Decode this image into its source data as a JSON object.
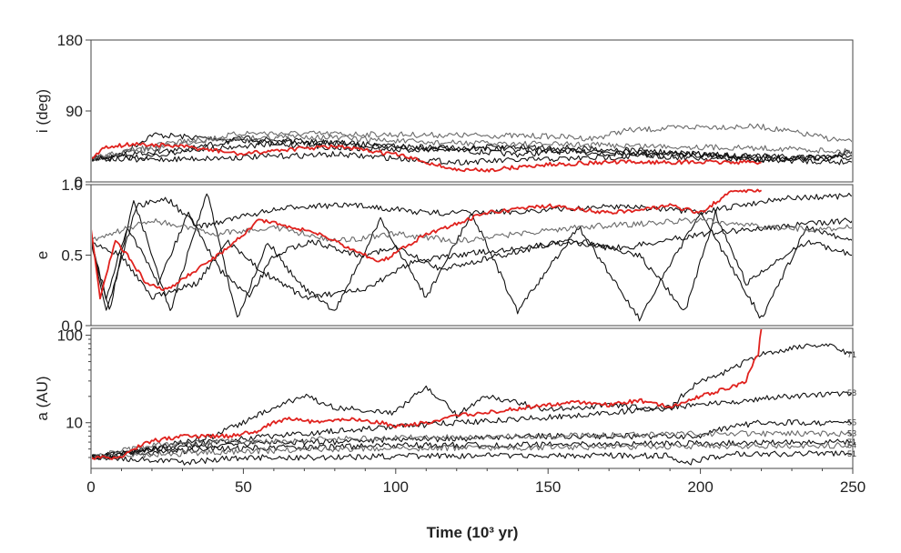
{
  "colors": {
    "background": "#ffffff",
    "axis": "#444444",
    "black_series": "#111111",
    "gray_series": "#6a6a6a",
    "highlight": "#e0221e"
  },
  "chart_data": {
    "type": "line",
    "layout": "three stacked panels sharing the time axis",
    "xlabel": "Time (10³ yr)",
    "xlim": [
      0,
      250
    ],
    "xticks": [
      "0",
      "50",
      "100",
      "150",
      "200",
      "250"
    ],
    "grid": false,
    "legend": "none",
    "panels": [
      {
        "id": "inclination",
        "ylabel": "i (deg)",
        "ylim": [
          0,
          180
        ],
        "scale": "linear",
        "yticks": [
          "0",
          "90",
          "180"
        ],
        "series": [
          {
            "color": "red",
            "x": [
              0,
              5,
              15,
              30,
              40,
              50,
              60,
              80,
              100,
              110,
              120,
              130,
              150,
              170,
              200,
              210,
              220
            ],
            "y": [
              30,
              45,
              48,
              45,
              40,
              35,
              40,
              45,
              35,
              25,
              15,
              15,
              22,
              25,
              25,
              25,
              25
            ]
          },
          {
            "color": "black",
            "x": [
              0,
              10,
              20,
              40,
              60,
              80,
              100,
              120,
              140,
              160,
              180,
              200,
              220,
              250
            ],
            "y": [
              30,
              35,
              60,
              55,
              50,
              50,
              45,
              40,
              35,
              40,
              38,
              35,
              32,
              30
            ]
          },
          {
            "color": "gray",
            "x": [
              0,
              20,
              50,
              100,
              150,
              165,
              175,
              200,
              220,
              235,
              250
            ],
            "y": [
              30,
              42,
              62,
              60,
              58,
              55,
              65,
              70,
              70,
              60,
              50
            ]
          },
          {
            "color": "black",
            "x": [
              0,
              20,
              50,
              100,
              150,
              200,
              250
            ],
            "y": [
              30,
              32,
              55,
              45,
              40,
              30,
              25
            ]
          },
          {
            "color": "black",
            "x": [
              0,
              15,
              40,
              80,
              120,
              160,
              200,
              240,
              250
            ],
            "y": [
              30,
              28,
              30,
              35,
              25,
              30,
              35,
              30,
              40
            ]
          },
          {
            "color": "black",
            "x": [
              0,
              20,
              60,
              100,
              140,
              180,
              220,
              250
            ],
            "y": [
              30,
              38,
              48,
              40,
              45,
              40,
              28,
              32
            ]
          },
          {
            "color": "gray",
            "x": [
              0,
              30,
              70,
              110,
              150,
              190,
              230,
              250
            ],
            "y": [
              30,
              52,
              58,
              50,
              48,
              45,
              42,
              38
            ]
          }
        ]
      },
      {
        "id": "eccentricity",
        "ylabel": "e",
        "ylim": [
          0,
          1
        ],
        "scale": "linear",
        "yticks": [
          "0.0",
          "0.5",
          "1.0"
        ],
        "series": [
          {
            "color": "red",
            "x": [
              0,
              3,
              8,
              12,
              18,
              25,
              35,
              45,
              55,
              65,
              75,
              85,
              95,
              110,
              130,
              150,
              170,
              190,
              200,
              210,
              220
            ],
            "y": [
              0.7,
              0.2,
              0.6,
              0.5,
              0.3,
              0.25,
              0.4,
              0.55,
              0.75,
              0.7,
              0.65,
              0.55,
              0.45,
              0.65,
              0.8,
              0.85,
              0.8,
              0.85,
              0.8,
              0.95,
              0.96
            ]
          },
          {
            "color": "black",
            "x": [
              0,
              5,
              15,
              25,
              35,
              45,
              55,
              70,
              90,
              110,
              130,
              150,
              175,
              200,
              225,
              250
            ],
            "y": [
              0.6,
              0.1,
              0.85,
              0.9,
              0.7,
              0.75,
              0.8,
              0.85,
              0.85,
              0.8,
              0.8,
              0.82,
              0.85,
              0.8,
              0.9,
              0.92
            ]
          },
          {
            "color": "black",
            "x": [
              0,
              5,
              12,
              22,
              32,
              42,
              52,
              60,
              72,
              88,
              100,
              115,
              135,
              155,
              175,
              200,
              225,
              250
            ],
            "y": [
              0.6,
              0.2,
              0.7,
              0.3,
              0.8,
              0.4,
              0.2,
              0.5,
              0.6,
              0.5,
              0.55,
              0.4,
              0.5,
              0.6,
              0.55,
              0.65,
              0.7,
              0.75
            ]
          },
          {
            "color": "black",
            "x": [
              0,
              6,
              14,
              26,
              38,
              48,
              58,
              68,
              80,
              95,
              110,
              125,
              140,
              160,
              180,
              200,
              220,
              235,
              250
            ],
            "y": [
              0.6,
              0.1,
              0.9,
              0.1,
              0.95,
              0.05,
              0.6,
              0.3,
              0.1,
              0.75,
              0.2,
              0.8,
              0.1,
              0.7,
              0.05,
              0.8,
              0.05,
              0.7,
              0.6
            ]
          },
          {
            "color": "black",
            "x": [
              0,
              10,
              20,
              35,
              45,
              55,
              70,
              90,
              105,
              120,
              140,
              160,
              180,
              195,
              205,
              215,
              235,
              250
            ],
            "y": [
              0.6,
              0.5,
              0.2,
              0.3,
              0.6,
              0.4,
              0.2,
              0.25,
              0.45,
              0.5,
              0.55,
              0.6,
              0.5,
              0.1,
              0.8,
              0.3,
              0.6,
              0.5
            ]
          },
          {
            "color": "gray",
            "x": [
              0,
              20,
              40,
              60,
              80,
              100,
              120,
              140,
              160,
              180,
              200,
              220,
              240,
              250
            ],
            "y": [
              0.6,
              0.75,
              0.65,
              0.7,
              0.6,
              0.65,
              0.6,
              0.65,
              0.7,
              0.72,
              0.75,
              0.7,
              0.68,
              0.7
            ]
          }
        ]
      },
      {
        "id": "semimajor_axis",
        "ylabel": "a (AU)",
        "ylim": [
          3,
          120
        ],
        "scale": "log",
        "yticks": [
          "10",
          "100"
        ],
        "series": [
          {
            "color": "red",
            "x": [
              0,
              10,
              18,
              30,
              45,
              55,
              60,
              65,
              75,
              85,
              95,
              100,
              110,
              120,
              130,
              150,
              160,
              170,
              180,
              190,
              200,
              210,
              215,
              219,
              220
            ],
            "y": [
              4,
              4,
              6,
              7,
              7,
              8,
              10,
              11,
              10,
              11,
              10,
              9,
              10,
              12,
              13,
              16,
              17,
              16,
              18,
              15,
              20,
              25,
              30,
              60,
              120
            ]
          },
          {
            "color": "black",
            "label": "71",
            "x": [
              0,
              20,
              40,
              50,
              60,
              70,
              80,
              100,
              110,
              120,
              130,
              150,
              170,
              180,
              190,
              200,
              210,
              220,
              230,
              240,
              250
            ],
            "y": [
              4,
              5,
              7,
              10,
              15,
              20,
              15,
              13,
              25,
              12,
              20,
              14,
              16,
              15,
              14,
              30,
              40,
              60,
              70,
              80,
              60
            ]
          },
          {
            "color": "black",
            "label": "58",
            "x": [
              0,
              20,
              40,
              60,
              80,
              100,
              120,
              140,
              160,
              180,
              200,
              215,
              230,
              250
            ],
            "y": [
              4,
              5,
              6,
              7,
              8,
              9,
              10,
              11,
              12,
              14,
              16,
              18,
              20,
              22
            ]
          },
          {
            "color": "black",
            "label": "55",
            "x": [
              0,
              20,
              40,
              60,
              80,
              100,
              120,
              140,
              160,
              180,
              200,
              210,
              220,
              250
            ],
            "y": [
              4,
              5,
              5.5,
              6,
              6,
              6.5,
              6.5,
              7,
              7,
              7,
              7,
              9,
              10,
              10
            ]
          },
          {
            "color": "gray",
            "label": "53",
            "x": [
              0,
              20,
              40,
              60,
              80,
              100,
              150,
              200,
              250
            ],
            "y": [
              4,
              5.5,
              6,
              6.2,
              6.5,
              6.7,
              7,
              7.5,
              7.5
            ]
          },
          {
            "color": "black",
            "label": "71",
            "x": [
              0,
              20,
              40,
              60,
              80,
              100,
              150,
              200,
              250
            ],
            "y": [
              4,
              4.5,
              5,
              5.2,
              5.3,
              5.5,
              5.6,
              5.8,
              6
            ]
          },
          {
            "color": "gray",
            "label": "54",
            "x": [
              0,
              20,
              40,
              60,
              80,
              100,
              150,
              200,
              250
            ],
            "y": [
              4,
              4.3,
              4.6,
              4.8,
              5,
              5.1,
              5.2,
              5.4,
              5.5
            ]
          },
          {
            "color": "black",
            "label": "51",
            "x": [
              0,
              20,
              30,
              50,
              80,
              110,
              150,
              190,
              195,
              210,
              250
            ],
            "y": [
              4,
              3.8,
              3.5,
              4,
              4,
              4.2,
              4.2,
              4.2,
              3.4,
              4.4,
              4.4
            ]
          }
        ]
      }
    ]
  }
}
